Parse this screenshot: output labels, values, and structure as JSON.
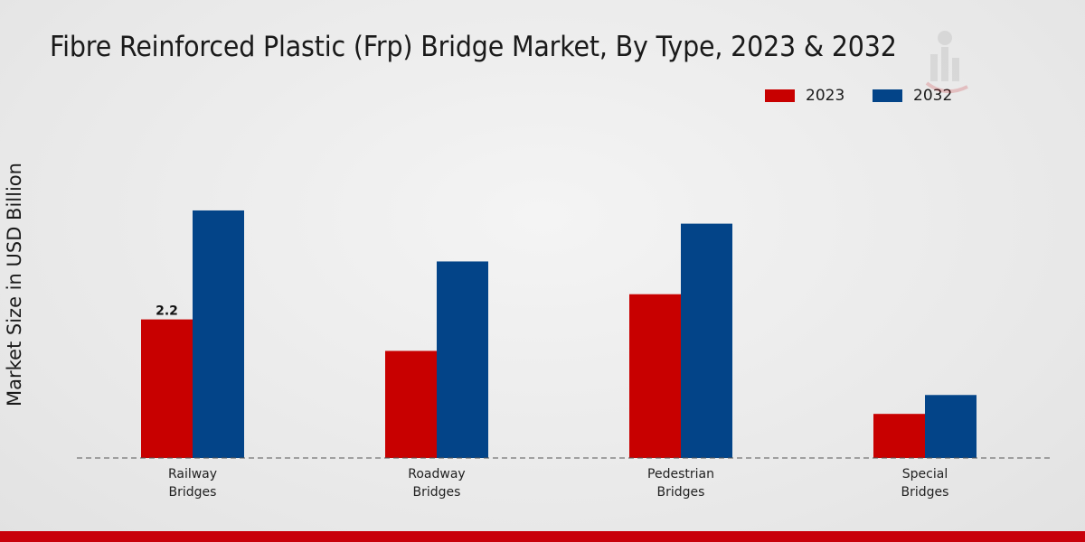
{
  "chart_data": {
    "type": "bar",
    "title": "Fibre Reinforced Plastic (Frp) Bridge Market, By Type, 2023 & 2032",
    "xlabel": "",
    "ylabel": "Market Size in USD Billion",
    "categories": [
      [
        "Railway",
        "Bridges"
      ],
      [
        "Roadway",
        "Bridges"
      ],
      [
        "Pedestrian",
        "Bridges"
      ],
      [
        "Special",
        "Bridges"
      ]
    ],
    "series": [
      {
        "name": "2023",
        "color": "#c80000",
        "values": [
          2.2,
          1.7,
          2.6,
          0.7
        ]
      },
      {
        "name": "2032",
        "color": "#034488",
        "values": [
          3.93,
          3.12,
          3.72,
          1.0
        ]
      }
    ],
    "data_labels": [
      {
        "series": 0,
        "index": 0,
        "text": "2.2"
      }
    ],
    "ylim": [
      0,
      5.55
    ],
    "legend_position": "top-right",
    "grid": false
  },
  "colors": {
    "accent": "#c8000a",
    "background": "#ebebeb"
  }
}
